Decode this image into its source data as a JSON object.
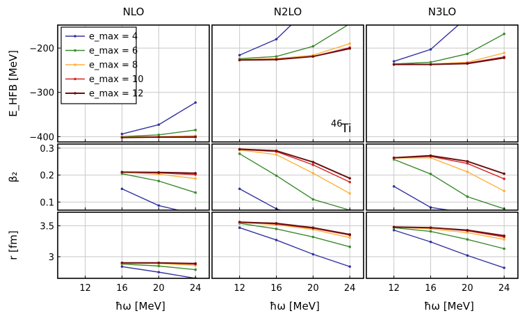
{
  "chart_data": {
    "type": "line",
    "columns": [
      "NLO",
      "N2LO",
      "N3LO"
    ],
    "x": [
      12,
      16,
      20,
      24
    ],
    "xticks": [
      "12",
      "16",
      "20",
      "24"
    ],
    "xlabel": "ħω [MeV]",
    "xlim": [
      9,
      25.5
    ],
    "legend": {
      "placement": "top-left of first panel",
      "entries": [
        "e_max = 4",
        "e_max = 6",
        "e_max = 8",
        "e_max = 10",
        "e_max = 12"
      ]
    },
    "series_colors": [
      "#3333a0",
      "#3b8a2e",
      "#ffb13d",
      "#d42525",
      "#6b0f0f"
    ],
    "annotation": "46Ti",
    "rows": [
      {
        "ylabel": "E_HFB [MeV]",
        "ylim": [
          -412,
          -148
        ],
        "yticks": [
          -400,
          -300,
          -200
        ],
        "ytick_labels": [
          "−400",
          "−300",
          "−200"
        ],
        "panels": [
          {
            "series": [
              {
                "name": "e_max = 4",
                "values": [
                  null,
                  -394,
                  -373,
                  -323
                ]
              },
              {
                "name": "e_max = 6",
                "values": [
                  null,
                  -400,
                  -396,
                  -385
                ]
              },
              {
                "name": "e_max = 8",
                "values": [
                  null,
                  -401,
                  -400,
                  -398
                ]
              },
              {
                "name": "e_max = 10",
                "values": [
                  null,
                  -402,
                  -401,
                  -400
                ]
              },
              {
                "name": "e_max = 12",
                "values": [
                  null,
                  -402,
                  -401,
                  -401
                ]
              }
            ]
          },
          {
            "series": [
              {
                "name": "e_max = 4",
                "values": [
                  -216,
                  -180,
                  -100,
                  null
                ]
              },
              {
                "name": "e_max = 6",
                "values": [
                  -224,
                  -219,
                  -196,
                  -145
                ]
              },
              {
                "name": "e_max = 8",
                "values": [
                  -226,
                  -224,
                  -216,
                  -190
                ]
              },
              {
                "name": "e_max = 10",
                "values": [
                  -227,
                  -225,
                  -219,
                  -199
                ]
              },
              {
                "name": "e_max = 12",
                "values": [
                  -227,
                  -226,
                  -219,
                  -201
                ]
              }
            ]
          },
          {
            "series": [
              {
                "name": "e_max = 4",
                "values": [
                  -230,
                  -203,
                  -130,
                  null
                ]
              },
              {
                "name": "e_max = 6",
                "values": [
                  -236,
                  -232,
                  -213,
                  -168
                ]
              },
              {
                "name": "e_max = 8",
                "values": [
                  -237,
                  -236,
                  -232,
                  -211
                ]
              },
              {
                "name": "e_max = 10",
                "values": [
                  -237,
                  -237,
                  -234,
                  -220
                ]
              },
              {
                "name": "e_max = 12",
                "values": [
                  -237,
                  -237,
                  -235,
                  -222
                ]
              }
            ]
          }
        ]
      },
      {
        "ylabel": "β₂",
        "ylim": [
          0.07,
          0.315
        ],
        "yticks": [
          0.1,
          0.2,
          0.3
        ],
        "ytick_labels": [
          "0.1",
          "0.2",
          "0.3"
        ],
        "panels": [
          {
            "series": [
              {
                "name": "e_max = 4",
                "values": [
                  null,
                  0.149,
                  0.087,
                  0.055
                ]
              },
              {
                "name": "e_max = 6",
                "values": [
                  null,
                  0.205,
                  0.178,
                  0.135
                ]
              },
              {
                "name": "e_max = 8",
                "values": [
                  null,
                  0.21,
                  0.203,
                  0.187
                ]
              },
              {
                "name": "e_max = 10",
                "values": [
                  null,
                  0.211,
                  0.208,
                  0.202
                ]
              },
              {
                "name": "e_max = 12",
                "values": [
                  null,
                  0.211,
                  0.21,
                  0.207
                ]
              }
            ]
          },
          {
            "series": [
              {
                "name": "e_max = 4",
                "values": [
                  0.149,
                  0.075,
                  0.03,
                  null
                ]
              },
              {
                "name": "e_max = 6",
                "values": [
                  0.279,
                  0.198,
                  0.11,
                  0.07
                ]
              },
              {
                "name": "e_max = 8",
                "values": [
                  0.293,
                  0.276,
                  0.207,
                  0.132
                ]
              },
              {
                "name": "e_max = 10",
                "values": [
                  0.295,
                  0.287,
                  0.238,
                  0.174
                ]
              },
              {
                "name": "e_max = 12",
                "values": [
                  0.296,
                  0.29,
                  0.248,
                  0.188
                ]
              }
            ]
          },
          {
            "series": [
              {
                "name": "e_max = 4",
                "values": [
                  0.158,
                  0.08,
                  0.06,
                  null
                ]
              },
              {
                "name": "e_max = 6",
                "values": [
                  0.258,
                  0.204,
                  0.12,
                  0.075
                ]
              },
              {
                "name": "e_max = 8",
                "values": [
                  0.263,
                  0.264,
                  0.212,
                  0.141
                ]
              },
              {
                "name": "e_max = 10",
                "values": [
                  0.264,
                  0.269,
                  0.243,
                  0.186
                ]
              },
              {
                "name": "e_max = 12",
                "values": [
                  0.264,
                  0.272,
                  0.251,
                  0.205
                ]
              }
            ]
          }
        ]
      },
      {
        "ylabel": "r [fm]",
        "ylim": [
          2.65,
          3.72
        ],
        "yticks": [
          3.0,
          3.5
        ],
        "ytick_labels": [
          "3",
          "3.5"
        ],
        "panels": [
          {
            "series": [
              {
                "name": "e_max = 4",
                "values": [
                  null,
                  2.84,
                  2.75,
                  2.65
                ]
              },
              {
                "name": "e_max = 6",
                "values": [
                  null,
                  2.88,
                  2.85,
                  2.79
                ]
              },
              {
                "name": "e_max = 8",
                "values": [
                  null,
                  2.89,
                  2.89,
                  2.86
                ]
              },
              {
                "name": "e_max = 10",
                "values": [
                  null,
                  2.9,
                  2.9,
                  2.88
                ]
              },
              {
                "name": "e_max = 12",
                "values": [
                  null,
                  2.9,
                  2.9,
                  2.89
                ]
              }
            ]
          },
          {
            "series": [
              {
                "name": "e_max = 4",
                "values": [
                  3.47,
                  3.27,
                  3.04,
                  2.84
                ]
              },
              {
                "name": "e_max = 6",
                "values": [
                  3.54,
                  3.45,
                  3.32,
                  3.16
                ]
              },
              {
                "name": "e_max = 8",
                "values": [
                  3.55,
                  3.52,
                  3.44,
                  3.31
                ]
              },
              {
                "name": "e_max = 10",
                "values": [
                  3.56,
                  3.53,
                  3.46,
                  3.35
                ]
              },
              {
                "name": "e_max = 12",
                "values": [
                  3.56,
                  3.54,
                  3.47,
                  3.36
                ]
              }
            ]
          },
          {
            "series": [
              {
                "name": "e_max = 4",
                "values": [
                  3.43,
                  3.24,
                  3.02,
                  2.82
                ]
              },
              {
                "name": "e_max = 6",
                "values": [
                  3.47,
                  3.41,
                  3.28,
                  3.13
                ]
              },
              {
                "name": "e_max = 8",
                "values": [
                  3.48,
                  3.45,
                  3.39,
                  3.28
                ]
              },
              {
                "name": "e_max = 10",
                "values": [
                  3.48,
                  3.47,
                  3.42,
                  3.32
                ]
              },
              {
                "name": "e_max = 12",
                "values": [
                  3.48,
                  3.47,
                  3.43,
                  3.34
                ]
              }
            ]
          }
        ]
      }
    ]
  }
}
